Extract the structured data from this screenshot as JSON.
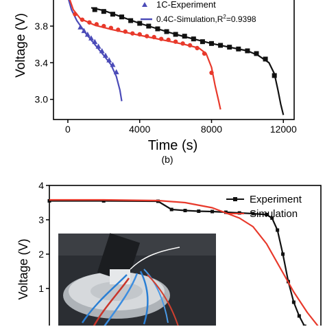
{
  "chart_data": [
    {
      "type": "line",
      "panel_label": "(b)",
      "xlabel": "Time (s)",
      "ylabel": "Voltage (V)",
      "xlim": [
        -800,
        12600
      ],
      "ylim": [
        2.78,
        4.1
      ],
      "xticks": [
        0,
        4000,
        8000,
        12000
      ],
      "xtick_labels": [
        "0",
        "4000",
        "8000",
        "12000"
      ],
      "yticks": [
        3.0,
        3.4,
        3.8
      ],
      "ytick_labels": [
        "3.0",
        "3.4",
        "3.8"
      ],
      "legend": {
        "placement": "top-right",
        "entries": [
          {
            "label": "1C-Experiment",
            "color": "#4b4bb8",
            "marker": "triangle"
          },
          {
            "label": "0.4C-Simulation,R",
            "sup": "2",
            "suffix": "=0.9398",
            "color": "#4b4bb8",
            "marker": "line"
          }
        ]
      },
      "series": [
        {
          "kind": "line",
          "color": "#4b4bb8",
          "x": [
            0,
            200,
            500,
            1000,
            1500,
            2000,
            2400,
            2700,
            2900,
            3000
          ],
          "y": [
            4.12,
            3.98,
            3.86,
            3.72,
            3.6,
            3.48,
            3.38,
            3.25,
            3.1,
            2.98
          ]
        },
        {
          "kind": "markers",
          "marker": "triangle",
          "color": "#4b4bb8",
          "x": [
            700,
            900,
            1100,
            1300,
            1500,
            1700,
            1900,
            2100,
            2300,
            2500,
            2700
          ],
          "y": [
            3.79,
            3.75,
            3.71,
            3.67,
            3.63,
            3.58,
            3.53,
            3.48,
            3.43,
            3.38,
            3.3
          ]
        },
        {
          "kind": "line",
          "color": "#e8392b",
          "x": [
            0,
            300,
            700,
            1500,
            2500,
            3500,
            4500,
            5500,
            6500,
            7300,
            7700,
            8000,
            8200,
            8400,
            8500
          ],
          "y": [
            4.15,
            3.98,
            3.88,
            3.81,
            3.76,
            3.72,
            3.68,
            3.64,
            3.6,
            3.56,
            3.5,
            3.35,
            3.15,
            2.98,
            2.89
          ]
        },
        {
          "kind": "markers",
          "marker": "circle",
          "color": "#e8392b",
          "x": [
            400,
            800,
            1200,
            1600,
            2000,
            2400,
            2800,
            3200,
            3600,
            4000,
            4400,
            4800,
            5200,
            5600,
            6000,
            6400,
            6800,
            7200,
            7600,
            8000
          ],
          "y": [
            3.93,
            3.87,
            3.84,
            3.82,
            3.8,
            3.78,
            3.76,
            3.74,
            3.72,
            3.71,
            3.69,
            3.68,
            3.66,
            3.65,
            3.63,
            3.61,
            3.59,
            3.56,
            3.5,
            3.29
          ]
        },
        {
          "kind": "line",
          "color": "#111111",
          "x": [
            1300,
            2000,
            3000,
            4000,
            5000,
            6000,
            7000,
            8000,
            9000,
            10000,
            10600,
            11200,
            11500,
            11700,
            11850,
            12000
          ],
          "y": [
            4.0,
            3.97,
            3.9,
            3.83,
            3.77,
            3.71,
            3.66,
            3.61,
            3.57,
            3.53,
            3.48,
            3.4,
            3.28,
            3.1,
            2.95,
            2.83
          ]
        },
        {
          "kind": "markers",
          "marker": "square",
          "color": "#111111",
          "x": [
            1500,
            2000,
            2500,
            3000,
            3500,
            4000,
            4500,
            5000,
            5500,
            6000,
            6500,
            7000,
            7500,
            8000,
            8500,
            9000,
            9500,
            10000,
            10500,
            11000,
            11500
          ],
          "y": [
            3.98,
            3.96,
            3.93,
            3.9,
            3.86,
            3.83,
            3.8,
            3.77,
            3.74,
            3.71,
            3.69,
            3.66,
            3.63,
            3.61,
            3.59,
            3.57,
            3.55,
            3.53,
            3.5,
            3.44,
            3.26
          ]
        }
      ]
    },
    {
      "type": "line",
      "ylabel": "Voltage (V)",
      "xlim": [
        0,
        100
      ],
      "ylim": [
        -0.4,
        4
      ],
      "yticks": [
        1,
        2,
        3,
        4
      ],
      "ytick_labels": [
        "1",
        "2",
        "3",
        "4"
      ],
      "legend": {
        "placement": "top-right",
        "entries": [
          {
            "label": "Experiment",
            "color": "#111111",
            "marker": "square"
          },
          {
            "label": "Simulation",
            "color": "#e8392b",
            "marker": "line"
          }
        ]
      },
      "series": [
        {
          "name": "Experiment",
          "kind": "line",
          "marker": "square",
          "color": "#111111",
          "x": [
            0,
            20,
            40,
            45,
            50,
            55,
            60,
            65,
            70,
            75,
            80,
            82,
            84,
            86,
            88,
            90,
            92,
            94
          ],
          "y": [
            3.55,
            3.55,
            3.54,
            3.3,
            3.27,
            3.25,
            3.24,
            3.22,
            3.2,
            3.18,
            3.15,
            3.05,
            2.7,
            2.0,
            1.2,
            0.6,
            0.2,
            -0.1
          ]
        },
        {
          "name": "Simulation",
          "kind": "line",
          "color": "#e8392b",
          "x": [
            0,
            20,
            40,
            50,
            60,
            70,
            75,
            80,
            85,
            90,
            95,
            100
          ],
          "y": [
            3.58,
            3.58,
            3.56,
            3.5,
            3.35,
            3.05,
            2.8,
            2.3,
            1.6,
            0.9,
            0.3,
            -0.2
          ]
        }
      ],
      "inset_photo": {
        "subject": "battery-test-rig-photo"
      }
    }
  ]
}
